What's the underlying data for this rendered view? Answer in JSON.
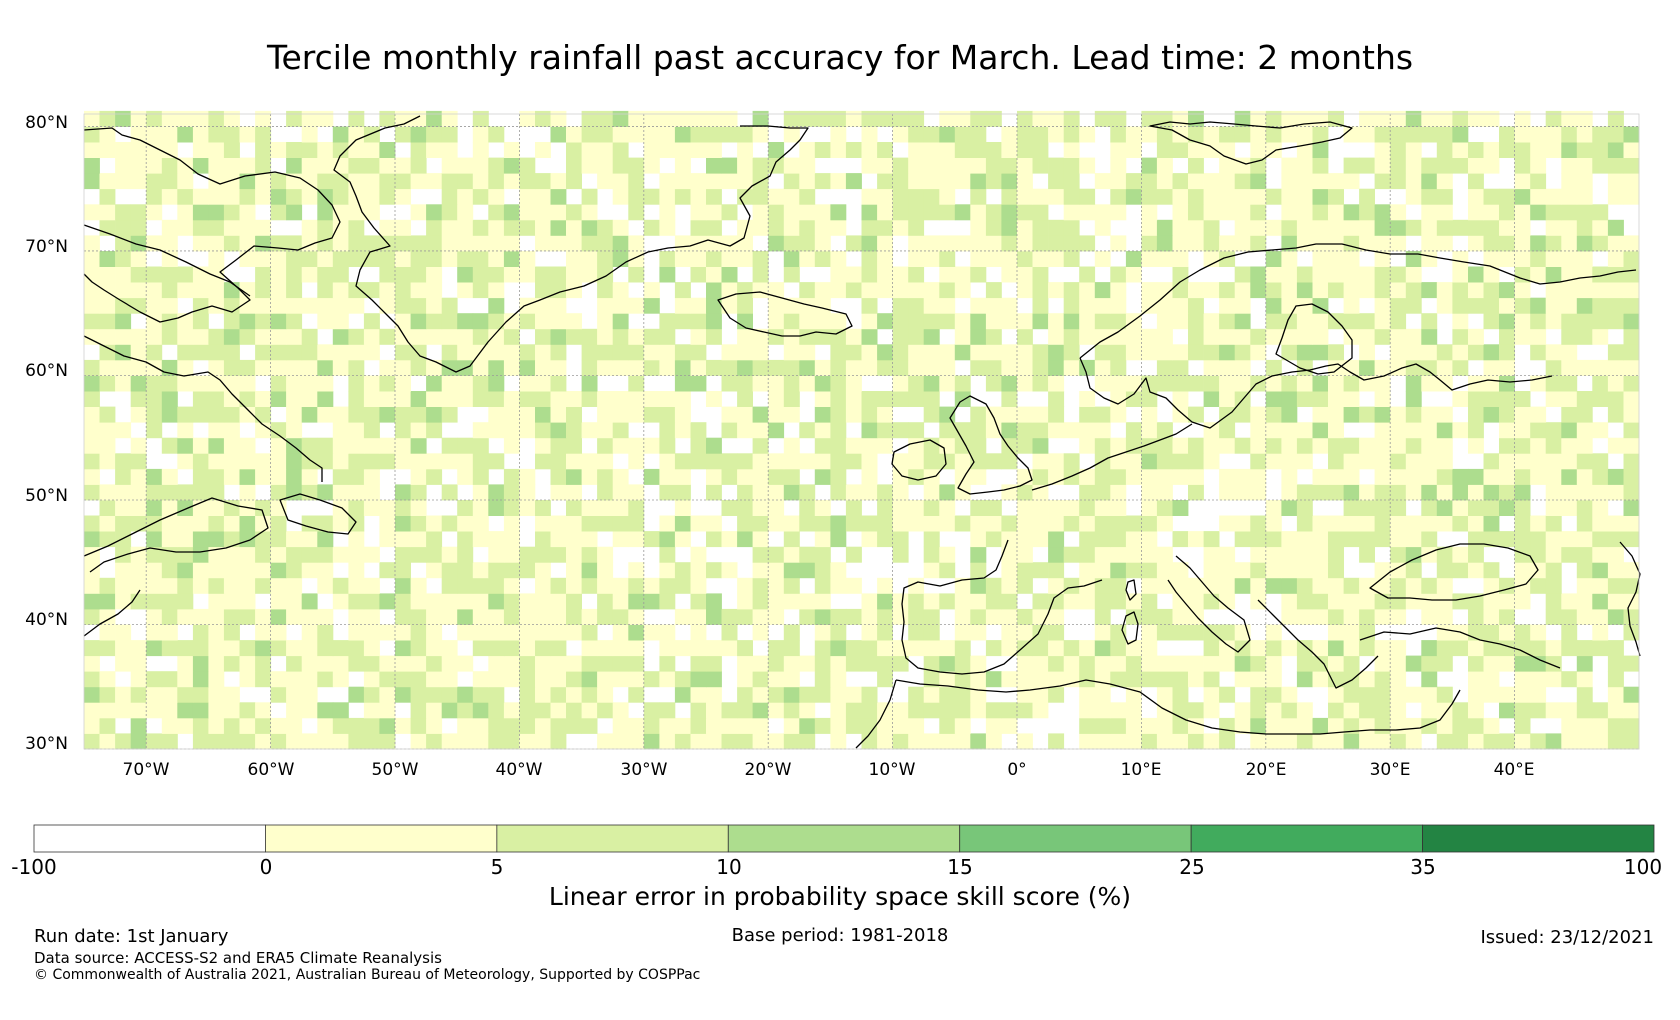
{
  "title": "Tercile monthly rainfall past accuracy for March. Lead time: 2 months",
  "map": {
    "lon_range": [
      -75,
      50
    ],
    "lat_range": [
      30,
      81
    ],
    "lat_labels": [
      "80°N",
      "70°N",
      "60°N",
      "50°N",
      "40°N",
      "30°N"
    ],
    "lat_values": [
      80,
      70,
      60,
      50,
      40,
      30
    ],
    "lon_labels": [
      "70°W",
      "60°W",
      "50°W",
      "40°W",
      "30°W",
      "20°W",
      "10°W",
      "0°",
      "10°E",
      "20°E",
      "30°E",
      "40°E"
    ],
    "lon_values": [
      -70,
      -60,
      -50,
      -40,
      -30,
      -20,
      -10,
      0,
      10,
      20,
      30,
      40
    ],
    "coastline_color": "#000000",
    "grid_color": "#9a9a9a",
    "regions": [
      "Greenland",
      "Iceland",
      "Canada",
      "Europe",
      "Scandinavia",
      "Mediterranean"
    ]
  },
  "colorbar": {
    "title": "Linear error in probability space skill score (%)",
    "ticks": [
      "-100",
      "0",
      "5",
      "10",
      "15",
      "25",
      "35",
      "100"
    ],
    "bins": [
      {
        "from": -100,
        "to": 0,
        "color": "#ffffff"
      },
      {
        "from": 0,
        "to": 5,
        "color": "#ffffcc"
      },
      {
        "from": 5,
        "to": 10,
        "color": "#d9f0a3"
      },
      {
        "from": 10,
        "to": 15,
        "color": "#addd8e"
      },
      {
        "from": 15,
        "to": 25,
        "color": "#78c679"
      },
      {
        "from": 25,
        "to": 35,
        "color": "#41ab5d"
      },
      {
        "from": 35,
        "to": 100,
        "color": "#238443"
      }
    ]
  },
  "footer": {
    "run_date": "Run date: 1st January",
    "base_period": "Base period: 1981-2018",
    "issued": "Issued: 23/12/2021",
    "source": "Data source: ACCESS-S2 and ERA5 Climate Reanalysis",
    "copyright": "© Commonwealth of Australia 2021, Australian Bureau of Meteorology, Supported by COSPPac"
  }
}
